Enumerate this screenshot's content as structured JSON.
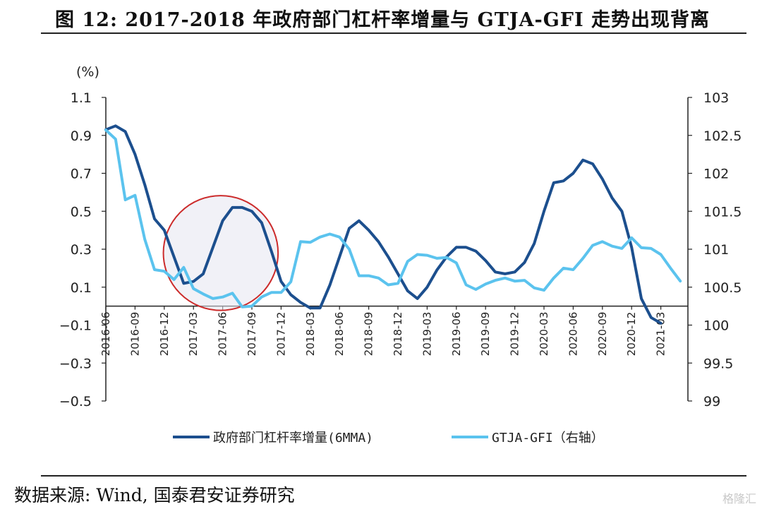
{
  "header": {
    "title": "图 12: 2017-2018 年政府部门杠杆率增量与 GTJA-GFI 走势出现背离"
  },
  "footer": {
    "source": "数据来源: Wind, 国泰君安证券研究",
    "watermark": "格隆汇"
  },
  "chart_data": {
    "type": "line",
    "y_unit_label": "(%)",
    "y_left": {
      "min": -0.5,
      "max": 1.1,
      "ticks": [
        1.1,
        0.9,
        0.7,
        0.5,
        0.3,
        0.1,
        -0.1,
        -0.3,
        -0.5
      ]
    },
    "y_right": {
      "min": 99,
      "max": 103,
      "ticks": [
        103,
        102.5,
        102,
        101.5,
        101,
        100.5,
        100,
        99.5,
        99
      ]
    },
    "x_ticks": [
      "2016-06",
      "2016-09",
      "2016-12",
      "2017-03",
      "2017-06",
      "2017-09",
      "2017-12",
      "2018-03",
      "2018-06",
      "2018-09",
      "2018-12",
      "2019-03",
      "2019-06",
      "2019-09",
      "2019-12",
      "2020-03",
      "2020-06",
      "2020-09",
      "2020-12",
      "2021-03"
    ],
    "x_labels_display": [
      "2016-06",
      "2016-09",
      "2016-12",
      "2017-03",
      "2017-06",
      "2017-09",
      "2017-12",
      "2018-03",
      "2018-06",
      "2018-09",
      "2018-12",
      "2019-03",
      "2019-06",
      "2019-09",
      "2019-12",
      "2020-03",
      "2020-06",
      "2020-09",
      "2020-12",
      "2021-03"
    ],
    "highlight": {
      "center_x": 11.8,
      "center_y_left": 0.28,
      "radius_months": 3.8,
      "color": "#cc2b2b"
    },
    "series": [
      {
        "name": "政府部门杠杆率增量(6MMA)",
        "axis": "left",
        "color": "#1c4f8e",
        "values": [
          0.93,
          0.95,
          0.92,
          0.8,
          0.64,
          0.46,
          0.4,
          0.26,
          0.12,
          0.13,
          0.17,
          0.31,
          0.45,
          0.52,
          0.52,
          0.5,
          0.44,
          0.29,
          0.13,
          0.06,
          0.02,
          -0.01,
          -0.01,
          0.11,
          0.26,
          0.41,
          0.45,
          0.4,
          0.34,
          0.26,
          0.17,
          0.08,
          0.04,
          0.1,
          0.19,
          0.26,
          0.31,
          0.31,
          0.29,
          0.24,
          0.18,
          0.17,
          0.18,
          0.23,
          0.33,
          0.5,
          0.65,
          0.66,
          0.7,
          0.77,
          0.75,
          0.67,
          0.57,
          0.5,
          0.31,
          0.04,
          -0.06,
          -0.09
        ]
      },
      {
        "name": "GTJA-GFI（右轴）",
        "axis": "right",
        "color": "#5bc3ee",
        "values": [
          102.57,
          102.45,
          101.65,
          101.71,
          101.13,
          100.73,
          100.71,
          100.6,
          100.76,
          100.48,
          100.41,
          100.35,
          100.37,
          100.42,
          100.24,
          100.25,
          100.37,
          100.43,
          100.43,
          100.57,
          101.1,
          101.09,
          101.16,
          101.2,
          101.16,
          101.0,
          100.65,
          100.65,
          100.62,
          100.53,
          100.55,
          100.84,
          100.93,
          100.92,
          100.88,
          100.89,
          100.82,
          100.53,
          100.47,
          100.54,
          100.59,
          100.62,
          100.58,
          100.59,
          100.49,
          100.46,
          100.62,
          100.75,
          100.73,
          100.88,
          101.05,
          101.1,
          101.04,
          101.01,
          101.15,
          101.02,
          101.01,
          100.93,
          100.75,
          100.58
        ]
      }
    ]
  }
}
